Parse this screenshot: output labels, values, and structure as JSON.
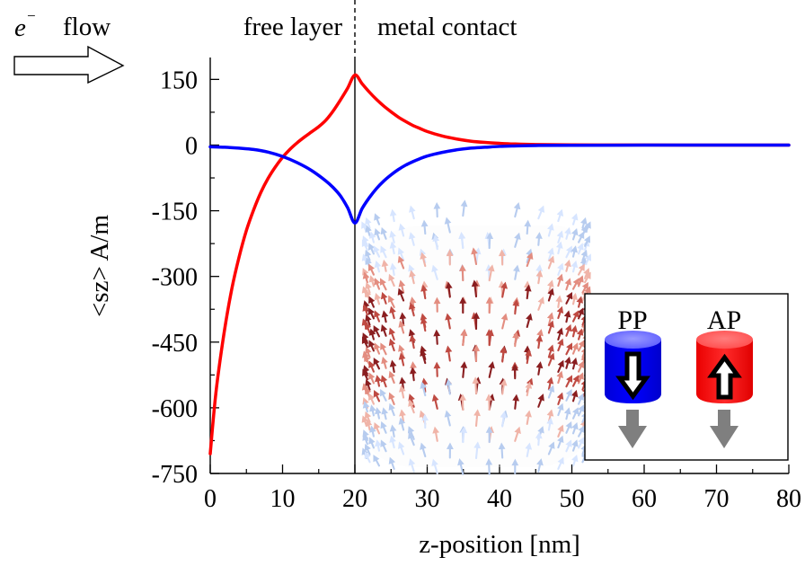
{
  "header": {
    "electron_symbol": "e",
    "electron_superscript": "−",
    "flow_label": "flow",
    "region_left": "free layer",
    "region_right": "metal contact"
  },
  "chart_data": {
    "type": "line",
    "title": "",
    "xlabel": "z-position [nm]",
    "ylabel": "<sz> A/m",
    "xlim": [
      0,
      80
    ],
    "ylim": [
      -750,
      200
    ],
    "x_ticks": [
      0,
      10,
      20,
      30,
      40,
      50,
      60,
      70,
      80
    ],
    "y_ticks": [
      150,
      0,
      -150,
      -300,
      -450,
      -600,
      -750
    ],
    "interface_x": 20,
    "grid": false,
    "series": [
      {
        "color": "#ff0000",
        "points": [
          [
            0,
            -705
          ],
          [
            0.5,
            -612
          ],
          [
            1,
            -536
          ],
          [
            2,
            -420
          ],
          [
            3,
            -327
          ],
          [
            4,
            -255
          ],
          [
            5,
            -195
          ],
          [
            6,
            -148
          ],
          [
            7,
            -108
          ],
          [
            8,
            -76
          ],
          [
            9,
            -50
          ],
          [
            10,
            -28
          ],
          [
            11,
            -10
          ],
          [
            12,
            5
          ],
          [
            13,
            18
          ],
          [
            14,
            30
          ],
          [
            15,
            42
          ],
          [
            16,
            57
          ],
          [
            17,
            78
          ],
          [
            18,
            103
          ],
          [
            19,
            130
          ],
          [
            20,
            160
          ],
          [
            21,
            140
          ],
          [
            22,
            121
          ],
          [
            23,
            104
          ],
          [
            24,
            89
          ],
          [
            25,
            76
          ],
          [
            26,
            64
          ],
          [
            27,
            54
          ],
          [
            28,
            45
          ],
          [
            29,
            38
          ],
          [
            30,
            31
          ],
          [
            32,
            21
          ],
          [
            34,
            14
          ],
          [
            36,
            9
          ],
          [
            38,
            6
          ],
          [
            40,
            4
          ],
          [
            42,
            2.5
          ],
          [
            45,
            1.2
          ],
          [
            50,
            0.5
          ],
          [
            55,
            0.2
          ],
          [
            60,
            0.1
          ],
          [
            70,
            0
          ],
          [
            80,
            0
          ]
        ]
      },
      {
        "color": "#0000ff",
        "points": [
          [
            0,
            -4
          ],
          [
            2,
            -5
          ],
          [
            4,
            -7
          ],
          [
            6,
            -10
          ],
          [
            8,
            -16
          ],
          [
            10,
            -26
          ],
          [
            12,
            -40
          ],
          [
            14,
            -58
          ],
          [
            16,
            -82
          ],
          [
            17,
            -97
          ],
          [
            18,
            -116
          ],
          [
            19,
            -143
          ],
          [
            20,
            -178
          ],
          [
            21,
            -145
          ],
          [
            22,
            -120
          ],
          [
            23,
            -99
          ],
          [
            24,
            -82
          ],
          [
            25,
            -68
          ],
          [
            26,
            -56
          ],
          [
            27,
            -46
          ],
          [
            28,
            -38
          ],
          [
            29,
            -31
          ],
          [
            30,
            -25
          ],
          [
            32,
            -17
          ],
          [
            34,
            -11
          ],
          [
            36,
            -7
          ],
          [
            38,
            -5
          ],
          [
            40,
            -3
          ],
          [
            42,
            -2
          ],
          [
            45,
            -1
          ],
          [
            50,
            -0.5
          ],
          [
            60,
            -0.1
          ],
          [
            70,
            0
          ],
          [
            80,
            0
          ]
        ]
      }
    ]
  },
  "legend": {
    "pp_label": "PP",
    "ap_label": "AP",
    "pp_color": "#0000ff",
    "ap_color": "#ff0000",
    "accent_gray": "#7f7f7f"
  },
  "inset": {
    "palette": [
      "#ffffff",
      "#d7e5ff",
      "#b7ccef",
      "#f0b4a8",
      "#e38d80",
      "#bf4a42",
      "#8a1e20",
      "#111111"
    ]
  }
}
